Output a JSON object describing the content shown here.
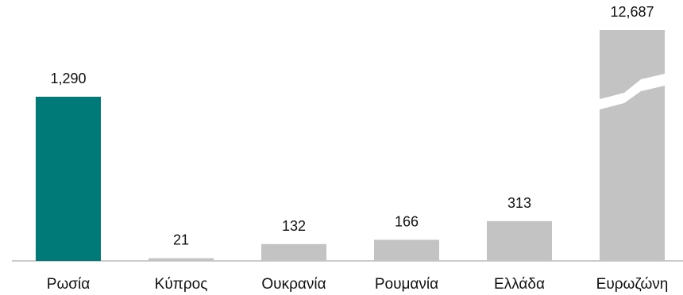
{
  "chart_data": {
    "type": "bar",
    "categories": [
      "Ρωσία",
      "Κύπρος",
      "Ουκρανία",
      "Ρουμανία",
      "Ελλάδα",
      "Ευρωζώνη"
    ],
    "values": [
      1290,
      21,
      132,
      166,
      313,
      12687
    ],
    "value_labels": [
      "1,290",
      "21",
      "132",
      "166",
      "313",
      "12,687"
    ],
    "axis_break_on": "Ευρωζώνη",
    "title": "",
    "xlabel": "",
    "ylabel": "",
    "grid": false,
    "legend": "none",
    "colors": {
      "highlight": "#007a78",
      "default": "#c3c3c3",
      "axis": "#999999",
      "text": "#111111"
    },
    "highlight_category": "Ρωσία"
  }
}
